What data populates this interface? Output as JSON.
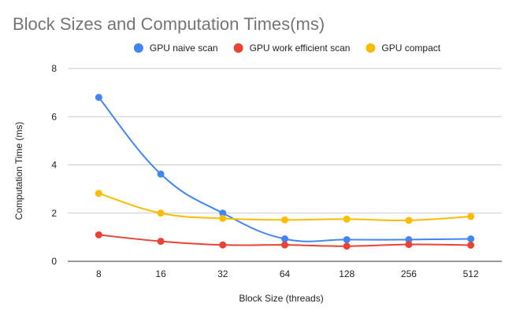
{
  "chart_data": {
    "type": "line",
    "title": "Block Sizes and Computation Times(ms)",
    "xlabel": "Block Size (threads)",
    "ylabel": "Computation Time (ms)",
    "categories": [
      "8",
      "16",
      "32",
      "64",
      "128",
      "256",
      "512"
    ],
    "ylim": [
      0,
      8
    ],
    "yticks": [
      "0",
      "2",
      "4",
      "6",
      "8"
    ],
    "grid": true,
    "smooth": true,
    "legend_position": "top",
    "series": [
      {
        "name": "GPU naive scan",
        "color": "#4285f4",
        "values": [
          6.8,
          3.62,
          2.0,
          0.93,
          0.9,
          0.9,
          0.93
        ]
      },
      {
        "name": "GPU work efficient scan",
        "color": "#ea4335",
        "values": [
          1.1,
          0.83,
          0.68,
          0.68,
          0.63,
          0.7,
          0.67
        ]
      },
      {
        "name": "GPU compact",
        "color": "#fbbc04",
        "values": [
          2.82,
          2.0,
          1.78,
          1.72,
          1.75,
          1.7,
          1.86
        ]
      }
    ]
  }
}
